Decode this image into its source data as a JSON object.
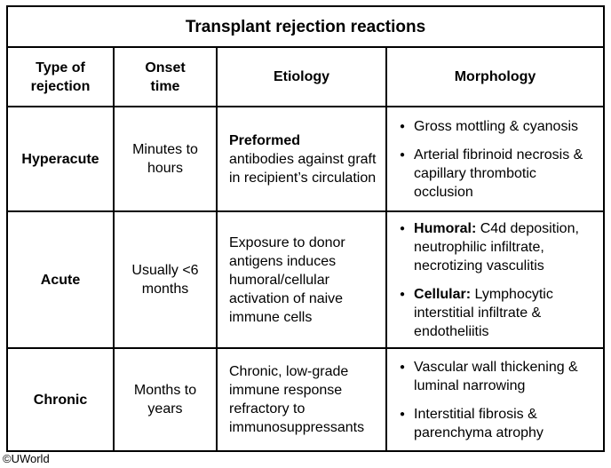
{
  "title": "Transplant rejection reactions",
  "header": {
    "type": "Type of\nrejection",
    "onset": "Onset\ntime",
    "etiology": "Etiology",
    "morphology": "Morphology"
  },
  "rows": [
    {
      "type": "Hyperacute",
      "onset": "Minutes to\nhours",
      "etiology": {
        "bold": "Preformed",
        "text": "antibodies against graft in recipient’s circulation"
      },
      "morphology": [
        {
          "bold": "",
          "text": "Gross mottling & cyanosis"
        },
        {
          "bold": "",
          "text": "Arterial fibrinoid necrosis & capillary thrombotic occlusion"
        }
      ]
    },
    {
      "type": "Acute",
      "onset": "Usually <6\nmonths",
      "etiology": {
        "bold": "",
        "text": "Exposure to donor antigens induces humoral/cellular activation of naive immune cells"
      },
      "morphology": [
        {
          "bold": "Humoral:",
          "text": " C4d deposition, neutrophilic infiltrate, necrotizing vasculitis"
        },
        {
          "bold": "Cellular:",
          "text": " Lymphocytic interstitial infiltrate & endotheliitis"
        }
      ]
    },
    {
      "type": "Chronic",
      "onset": "Months to\nyears",
      "etiology": {
        "bold": "",
        "text": "Chronic, low-grade immune response refractory to immunosuppressants"
      },
      "morphology": [
        {
          "bold": "",
          "text": "Vascular wall thickening & luminal narrowing"
        },
        {
          "bold": "",
          "text": "Interstitial fibrosis & parenchyma atrophy"
        }
      ]
    }
  ],
  "footer": "©UWorld",
  "bullet_glyph": "●",
  "colors": {
    "border": "#000000",
    "text": "#000000",
    "background": "#ffffff"
  }
}
